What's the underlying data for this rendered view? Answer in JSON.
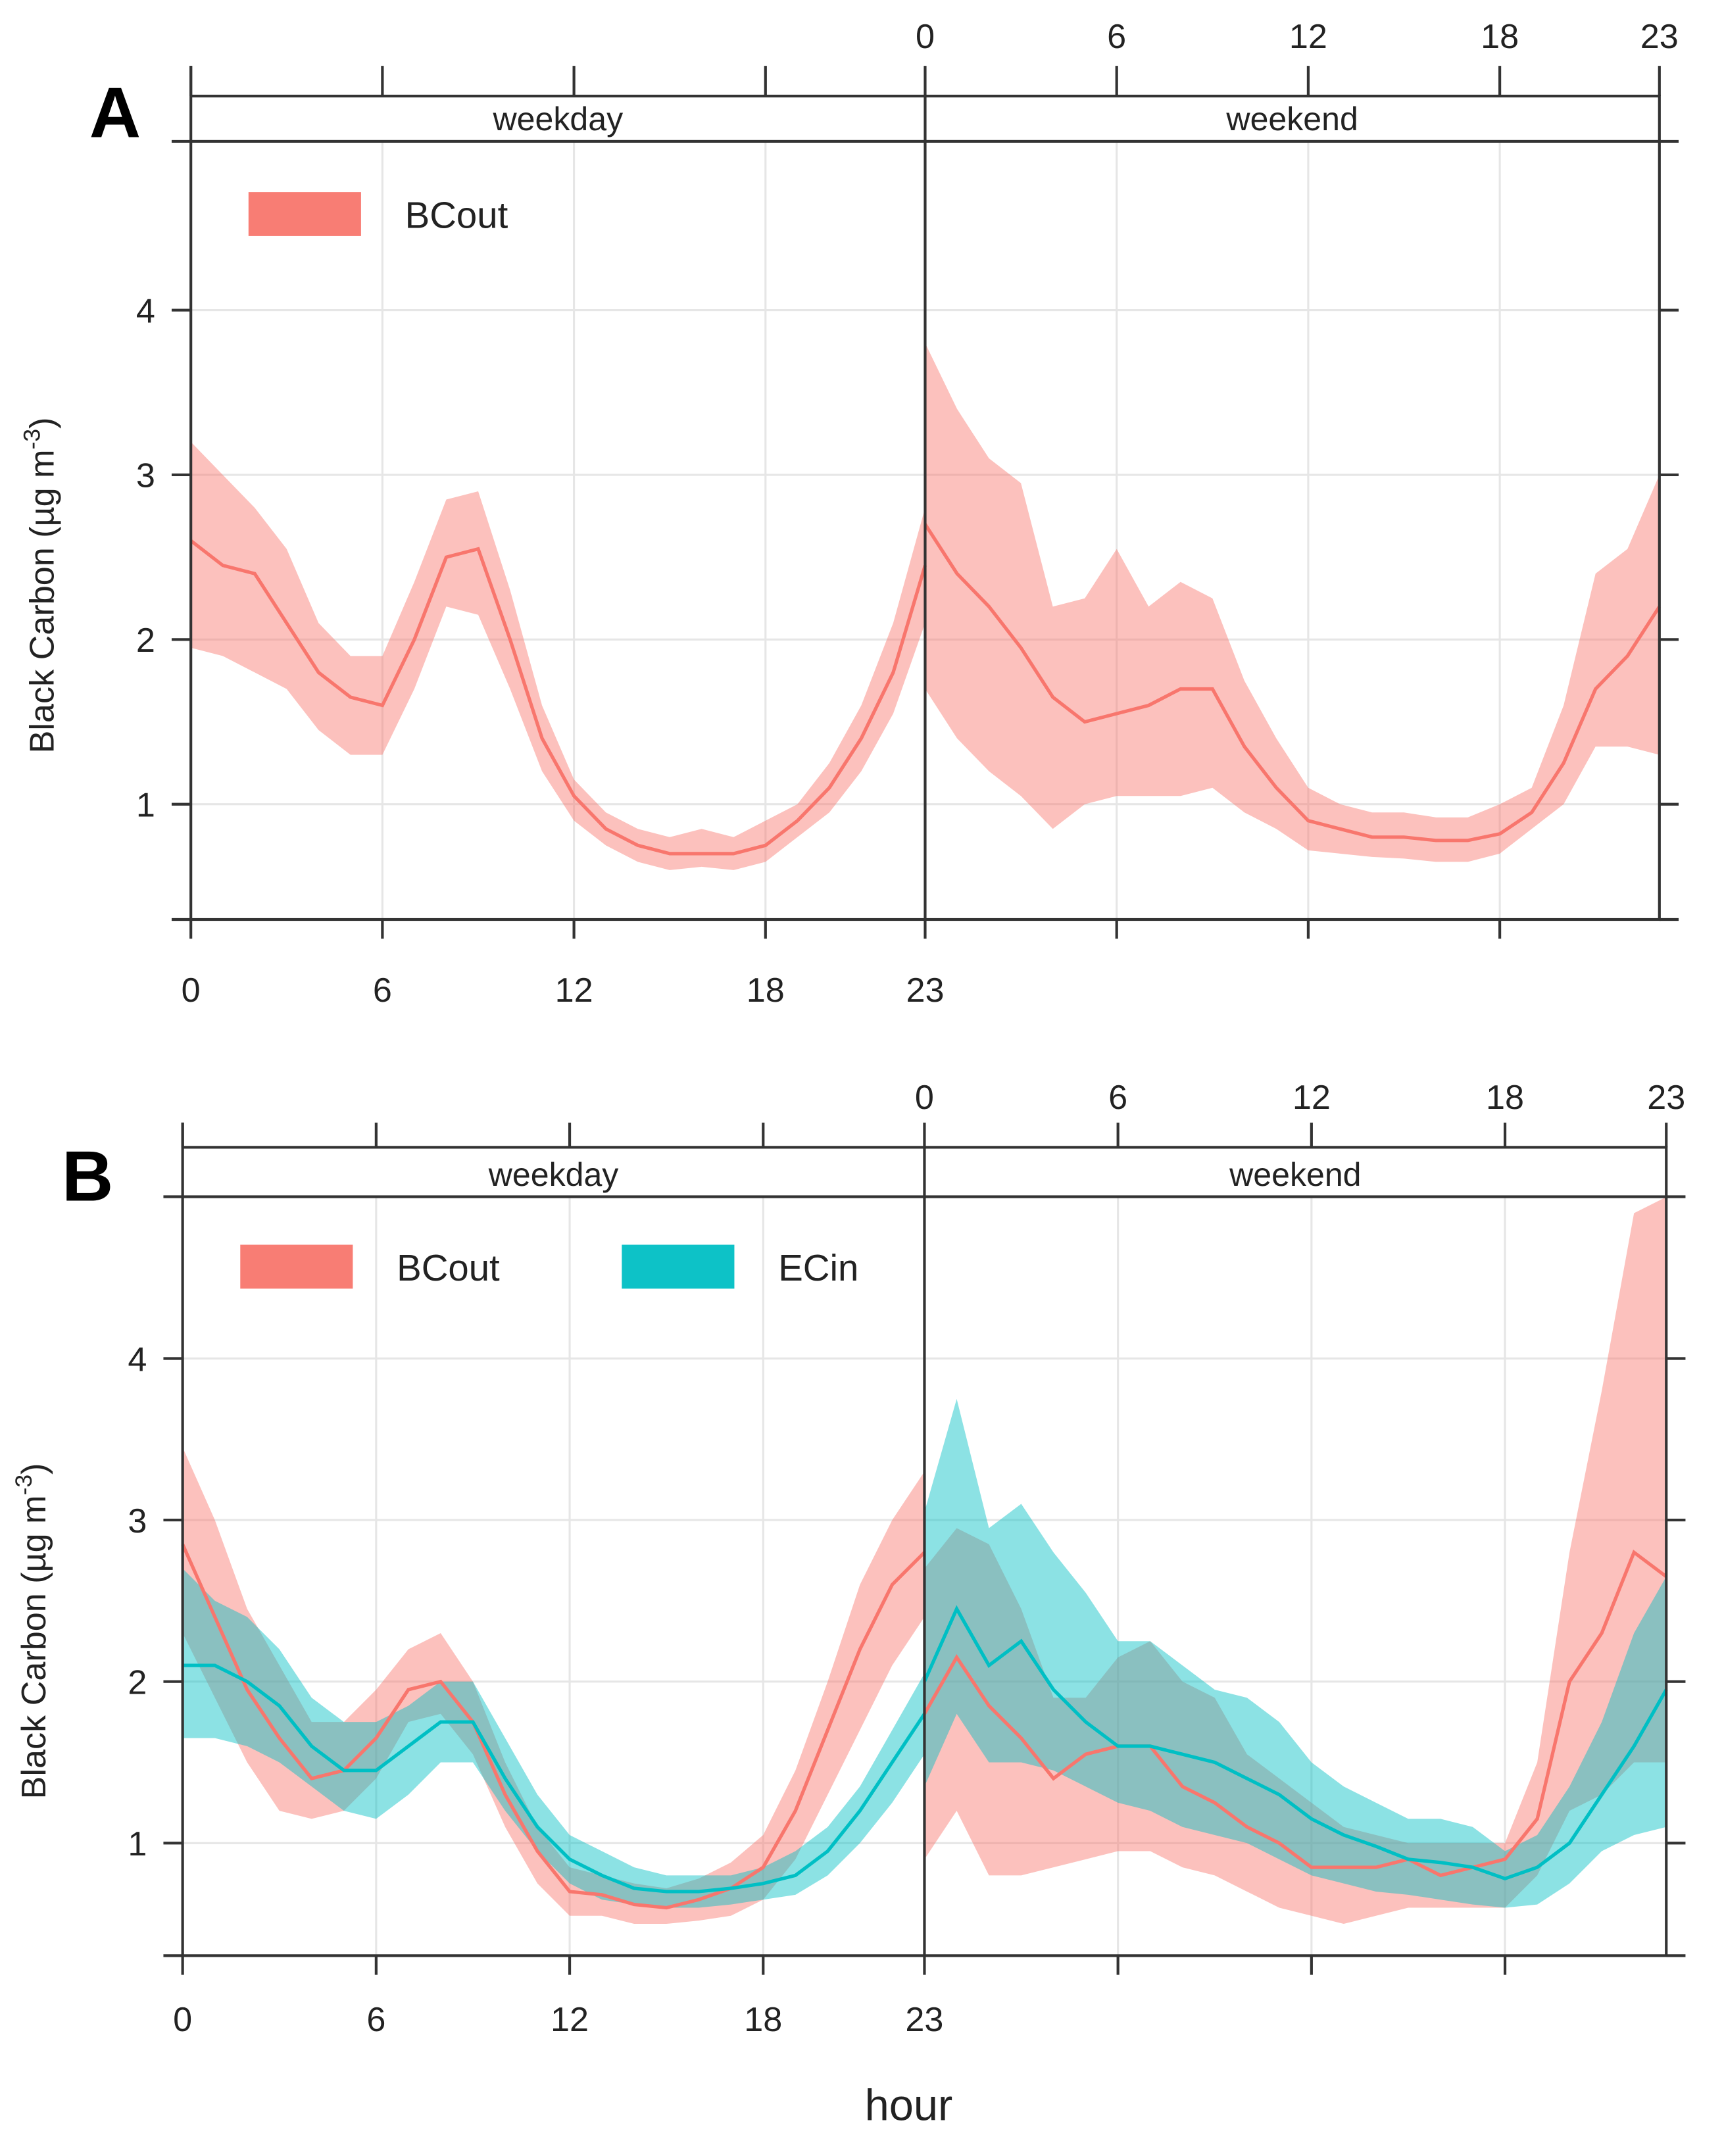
{
  "colors": {
    "BCout": "#F8766D",
    "ECin": "#00BFC4"
  },
  "chart_data": [
    {
      "type": "area",
      "panel_label": "A",
      "title": "",
      "xlabel": "",
      "ylabel": "Black Carbon (µg m⁻³)",
      "ylabel_main": "Black Carbon (µg m",
      "ylabel_sup": "-3",
      "ylabel_close": ")",
      "ylim": [
        0.3,
        5.03
      ],
      "yticks": [
        "1",
        "2",
        "3",
        "4"
      ],
      "xticks": [
        "0",
        "6",
        "12",
        "18",
        "23"
      ],
      "grid": true,
      "legend_position": "top-left",
      "facets": [
        {
          "strip": "weekday",
          "x": [
            0,
            1,
            2,
            3,
            4,
            5,
            6,
            7,
            8,
            9,
            10,
            11,
            12,
            13,
            14,
            15,
            16,
            17,
            18,
            19,
            20,
            21,
            22,
            23
          ],
          "series": [
            {
              "name": "BCout",
              "mean": [
                2.6,
                2.45,
                2.4,
                2.1,
                1.8,
                1.65,
                1.6,
                2.0,
                2.5,
                2.55,
                2.0,
                1.4,
                1.05,
                0.85,
                0.75,
                0.7,
                0.7,
                0.7,
                0.75,
                0.9,
                1.1,
                1.4,
                1.8,
                2.45
              ],
              "lower": [
                1.95,
                1.9,
                1.8,
                1.7,
                1.45,
                1.3,
                1.3,
                1.7,
                2.2,
                2.15,
                1.7,
                1.2,
                0.9,
                0.75,
                0.65,
                0.6,
                0.62,
                0.6,
                0.65,
                0.8,
                0.95,
                1.2,
                1.55,
                2.1
              ],
              "upper": [
                3.2,
                3.0,
                2.8,
                2.55,
                2.1,
                1.9,
                1.9,
                2.35,
                2.85,
                2.9,
                2.3,
                1.6,
                1.15,
                0.95,
                0.85,
                0.8,
                0.85,
                0.8,
                0.9,
                1.0,
                1.25,
                1.6,
                2.1,
                2.8
              ]
            }
          ]
        },
        {
          "strip": "weekend",
          "x": [
            0,
            1,
            2,
            3,
            4,
            5,
            6,
            7,
            8,
            9,
            10,
            11,
            12,
            13,
            14,
            15,
            16,
            17,
            18,
            19,
            20,
            21,
            22,
            23
          ],
          "series": [
            {
              "name": "BCout",
              "mean": [
                2.7,
                2.4,
                2.2,
                1.95,
                1.65,
                1.5,
                1.55,
                1.6,
                1.7,
                1.7,
                1.35,
                1.1,
                0.9,
                0.85,
                0.8,
                0.8,
                0.78,
                0.78,
                0.82,
                0.95,
                1.25,
                1.7,
                1.9,
                2.2
              ],
              "lower": [
                1.7,
                1.4,
                1.2,
                1.05,
                0.85,
                1.0,
                1.05,
                1.05,
                1.05,
                1.1,
                0.95,
                0.85,
                0.72,
                0.7,
                0.68,
                0.67,
                0.65,
                0.65,
                0.7,
                0.85,
                1.0,
                1.35,
                1.35,
                1.3
              ],
              "upper": [
                3.8,
                3.4,
                3.1,
                2.95,
                2.2,
                2.25,
                2.55,
                2.2,
                2.35,
                2.25,
                1.75,
                1.4,
                1.1,
                1.0,
                0.95,
                0.95,
                0.92,
                0.92,
                1.0,
                1.1,
                1.6,
                2.4,
                2.55,
                3.0
              ]
            }
          ]
        }
      ]
    },
    {
      "type": "area",
      "panel_label": "B",
      "title": "",
      "xlabel": "hour",
      "ylabel": "Black Carbon (µg m⁻³)",
      "ylabel_main": "Black Carbon (µg m",
      "ylabel_sup": "-3",
      "ylabel_close": ")",
      "ylim": [
        0.3,
        5.03
      ],
      "yticks": [
        "1",
        "2",
        "3",
        "4"
      ],
      "xticks": [
        "0",
        "6",
        "12",
        "18",
        "23"
      ],
      "grid": true,
      "legend_position": "top-left",
      "facets": [
        {
          "strip": "weekday",
          "x": [
            0,
            1,
            2,
            3,
            4,
            5,
            6,
            7,
            8,
            9,
            10,
            11,
            12,
            13,
            14,
            15,
            16,
            17,
            18,
            19,
            20,
            21,
            22,
            23
          ],
          "series": [
            {
              "name": "BCout",
              "mean": [
                2.85,
                2.4,
                1.95,
                1.65,
                1.4,
                1.45,
                1.65,
                1.95,
                2.0,
                1.75,
                1.3,
                0.95,
                0.7,
                0.68,
                0.62,
                0.6,
                0.65,
                0.72,
                0.85,
                1.2,
                1.7,
                2.2,
                2.6,
                2.8
              ],
              "lower": [
                2.3,
                1.9,
                1.5,
                1.2,
                1.15,
                1.2,
                1.4,
                1.75,
                1.8,
                1.55,
                1.1,
                0.75,
                0.55,
                0.55,
                0.5,
                0.5,
                0.52,
                0.55,
                0.65,
                0.9,
                1.3,
                1.7,
                2.1,
                2.4
              ],
              "upper": [
                3.45,
                3.0,
                2.45,
                2.1,
                1.75,
                1.75,
                1.95,
                2.2,
                2.3,
                2.0,
                1.5,
                1.1,
                0.85,
                0.8,
                0.75,
                0.72,
                0.78,
                0.88,
                1.05,
                1.45,
                2.0,
                2.6,
                3.0,
                3.3
              ]
            },
            {
              "name": "ECin",
              "mean": [
                2.1,
                2.1,
                2.0,
                1.85,
                1.6,
                1.45,
                1.45,
                1.6,
                1.75,
                1.75,
                1.4,
                1.1,
                0.9,
                0.8,
                0.72,
                0.7,
                0.7,
                0.72,
                0.75,
                0.8,
                0.95,
                1.2,
                1.5,
                1.8
              ],
              "lower": [
                1.65,
                1.65,
                1.6,
                1.5,
                1.35,
                1.2,
                1.15,
                1.3,
                1.5,
                1.5,
                1.2,
                0.95,
                0.75,
                0.65,
                0.62,
                0.6,
                0.6,
                0.62,
                0.65,
                0.68,
                0.8,
                1.0,
                1.25,
                1.55
              ],
              "upper": [
                2.7,
                2.5,
                2.4,
                2.2,
                1.9,
                1.75,
                1.75,
                1.85,
                2.0,
                2.0,
                1.65,
                1.3,
                1.05,
                0.95,
                0.85,
                0.8,
                0.8,
                0.8,
                0.85,
                0.95,
                1.1,
                1.35,
                1.7,
                2.05
              ]
            }
          ]
        },
        {
          "strip": "weekend",
          "x": [
            0,
            1,
            2,
            3,
            4,
            5,
            6,
            7,
            8,
            9,
            10,
            11,
            12,
            13,
            14,
            15,
            16,
            17,
            18,
            19,
            20,
            21,
            22,
            23
          ],
          "series": [
            {
              "name": "BCout",
              "mean": [
                1.8,
                2.15,
                1.85,
                1.65,
                1.4,
                1.55,
                1.6,
                1.6,
                1.35,
                1.25,
                1.1,
                1.0,
                0.85,
                0.85,
                0.85,
                0.9,
                0.8,
                0.85,
                0.9,
                1.15,
                2.0,
                2.3,
                2.8,
                2.65
              ],
              "lower": [
                0.9,
                1.2,
                0.8,
                0.8,
                0.85,
                0.9,
                0.95,
                0.95,
                0.85,
                0.8,
                0.7,
                0.6,
                0.55,
                0.5,
                0.55,
                0.6,
                0.6,
                0.6,
                0.6,
                0.8,
                1.2,
                1.3,
                1.5,
                1.5
              ],
              "upper": [
                2.7,
                2.95,
                2.85,
                2.45,
                1.9,
                1.9,
                2.15,
                2.25,
                2.0,
                1.9,
                1.55,
                1.4,
                1.25,
                1.1,
                1.05,
                1.0,
                1.0,
                1.0,
                1.0,
                1.5,
                2.8,
                3.8,
                4.9,
                5.0
              ]
            },
            {
              "name": "ECin",
              "mean": [
                2.0,
                2.45,
                2.1,
                2.25,
                1.95,
                1.75,
                1.6,
                1.6,
                1.55,
                1.5,
                1.4,
                1.3,
                1.15,
                1.05,
                0.98,
                0.9,
                0.88,
                0.85,
                0.78,
                0.85,
                1.0,
                1.3,
                1.6,
                1.95
              ],
              "lower": [
                1.35,
                1.8,
                1.5,
                1.5,
                1.45,
                1.35,
                1.25,
                1.2,
                1.1,
                1.05,
                1.0,
                0.9,
                0.8,
                0.75,
                0.7,
                0.68,
                0.65,
                0.62,
                0.6,
                0.62,
                0.75,
                0.95,
                1.05,
                1.1
              ],
              "upper": [
                3.05,
                3.75,
                2.95,
                3.1,
                2.8,
                2.55,
                2.25,
                2.25,
                2.1,
                1.95,
                1.9,
                1.75,
                1.5,
                1.35,
                1.25,
                1.15,
                1.15,
                1.1,
                0.95,
                1.05,
                1.35,
                1.75,
                2.3,
                2.65
              ]
            }
          ]
        }
      ]
    }
  ]
}
